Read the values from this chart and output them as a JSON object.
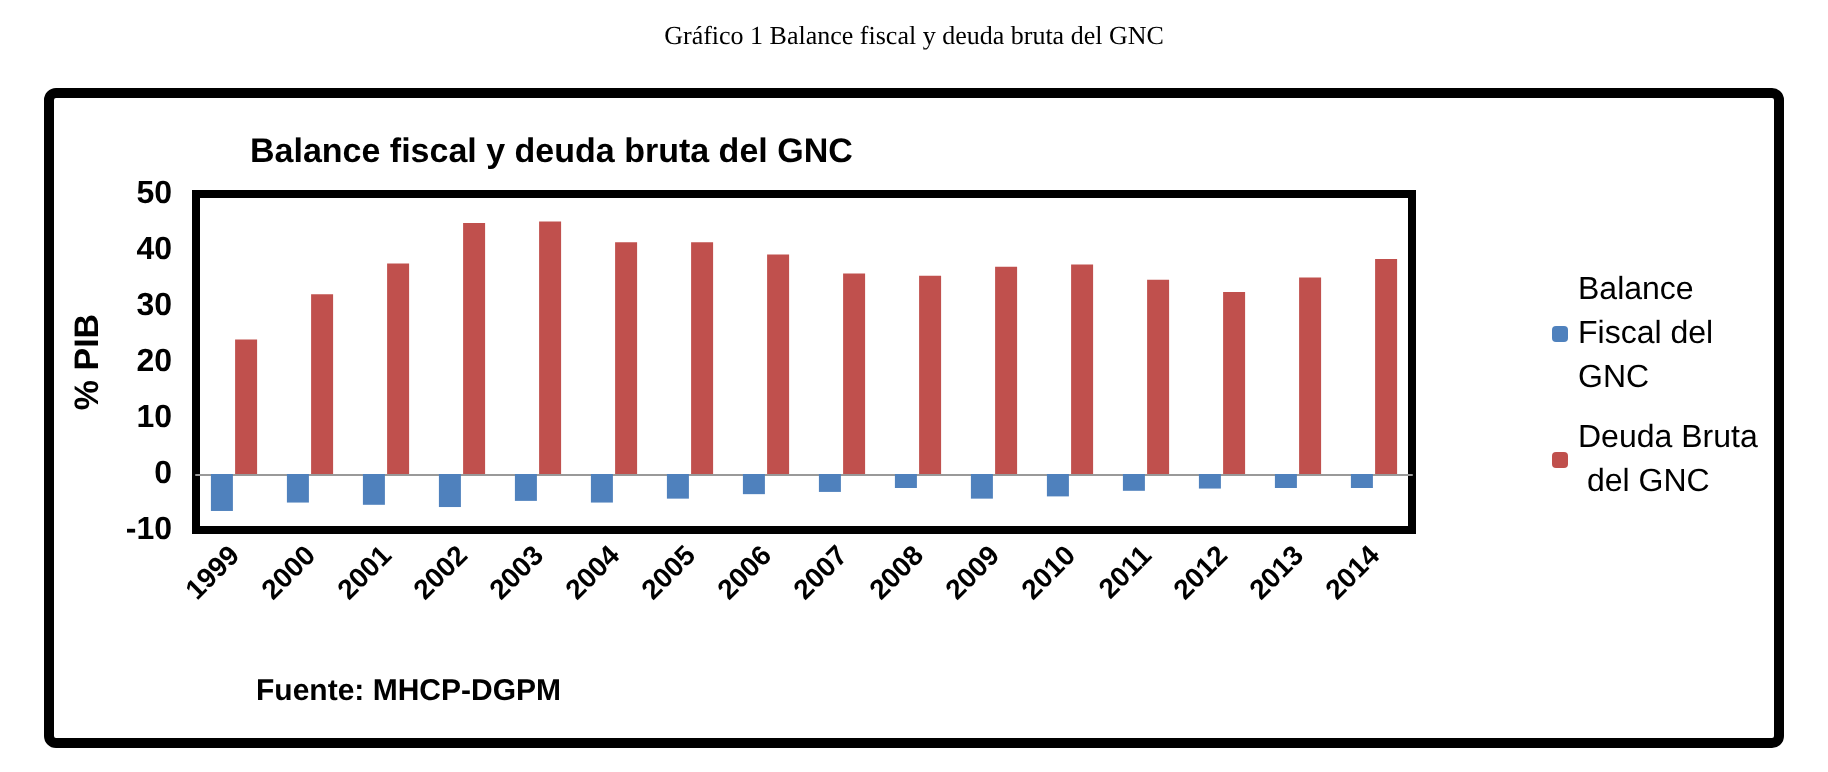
{
  "chart_data": {
    "type": "bar",
    "title": "Gráfico 1 Balance fiscal y deuda bruta del GNC",
    "subtitle": "Balance fiscal y deuda bruta del GNC",
    "ylabel": "% PIB",
    "annotations": [
      "Fuente: MHCP-DGPM"
    ],
    "categories": [
      "1999",
      "2000",
      "2001",
      "2002",
      "2003",
      "2004",
      "2005",
      "2006",
      "2007",
      "2008",
      "2009",
      "2010",
      "2011",
      "2012",
      "2013",
      "2014"
    ],
    "series": [
      {
        "name": "Balance Fiscal del GNC",
        "color": "#4f81bd",
        "values": [
          -6.6,
          -5.1,
          -5.5,
          -5.9,
          -4.8,
          -5.1,
          -4.4,
          -3.6,
          -3.2,
          -2.5,
          -4.4,
          -4.0,
          -3.0,
          -2.6,
          -2.5,
          -2.5
        ]
      },
      {
        "name": "Deuda Bruta del GNC",
        "color": "#c0504d",
        "values": [
          24.0,
          32.1,
          37.6,
          44.8,
          45.1,
          41.4,
          41.4,
          39.2,
          35.8,
          35.4,
          37.0,
          37.4,
          34.7,
          32.5,
          35.1,
          38.4
        ]
      }
    ],
    "ylim": [
      -10,
      50
    ],
    "yticks": [
      -10,
      0,
      10,
      20,
      30,
      40,
      50
    ],
    "legend": "right"
  }
}
